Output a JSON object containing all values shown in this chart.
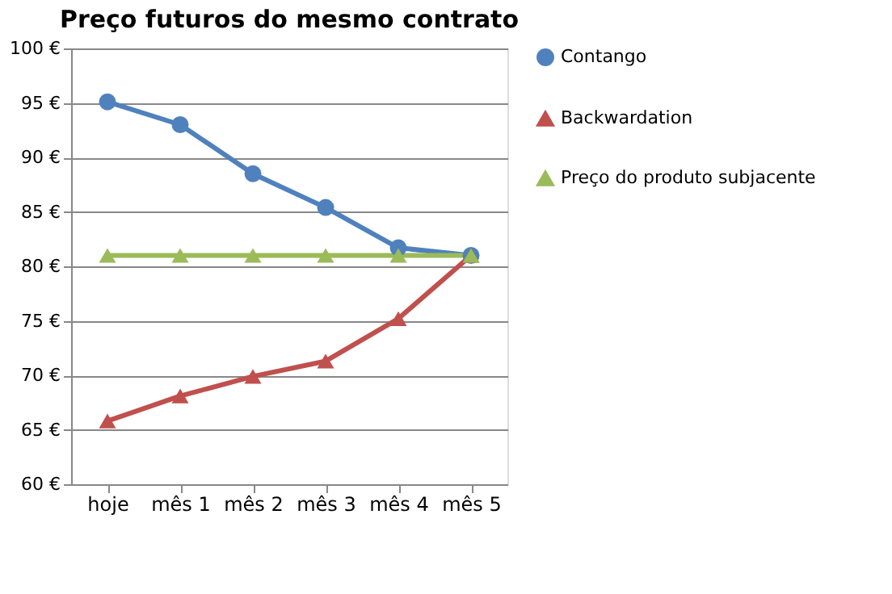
{
  "chart_data": {
    "type": "line",
    "title": "Preço futuros do mesmo contrato",
    "categories": [
      "hoje",
      "mês 1",
      "mês 2",
      "mês 3",
      "mês 4",
      "mês 5"
    ],
    "series": [
      {
        "name": "Contango",
        "color": "#4f81bd",
        "marker": "circle",
        "values": [
          95.1,
          93,
          88.5,
          85.4,
          81.7,
          81
        ]
      },
      {
        "name": "Backwardation",
        "color": "#c0504d",
        "marker": "triangle",
        "values": [
          65.8,
          68.1,
          69.9,
          71.3,
          75.2,
          81
        ]
      },
      {
        "name": "Preço do produto subjacente",
        "color": "#9bbb59",
        "marker": "triangle",
        "values": [
          81,
          81,
          81,
          81,
          81,
          81
        ]
      }
    ],
    "ylim": [
      60,
      100
    ],
    "yticks": [
      {
        "value": 60,
        "label": "60 €"
      },
      {
        "value": 65,
        "label": "65 €"
      },
      {
        "value": 70,
        "label": "70 €"
      },
      {
        "value": 75,
        "label": "75 €"
      },
      {
        "value": 80,
        "label": "80 €"
      },
      {
        "value": 85,
        "label": "85 €"
      },
      {
        "value": 90,
        "label": "90 €"
      },
      {
        "value": 95,
        "label": "95 €"
      },
      {
        "value": 100,
        "label": "100 €"
      }
    ],
    "grid": "y",
    "legend": "right",
    "line_style": "solid"
  }
}
